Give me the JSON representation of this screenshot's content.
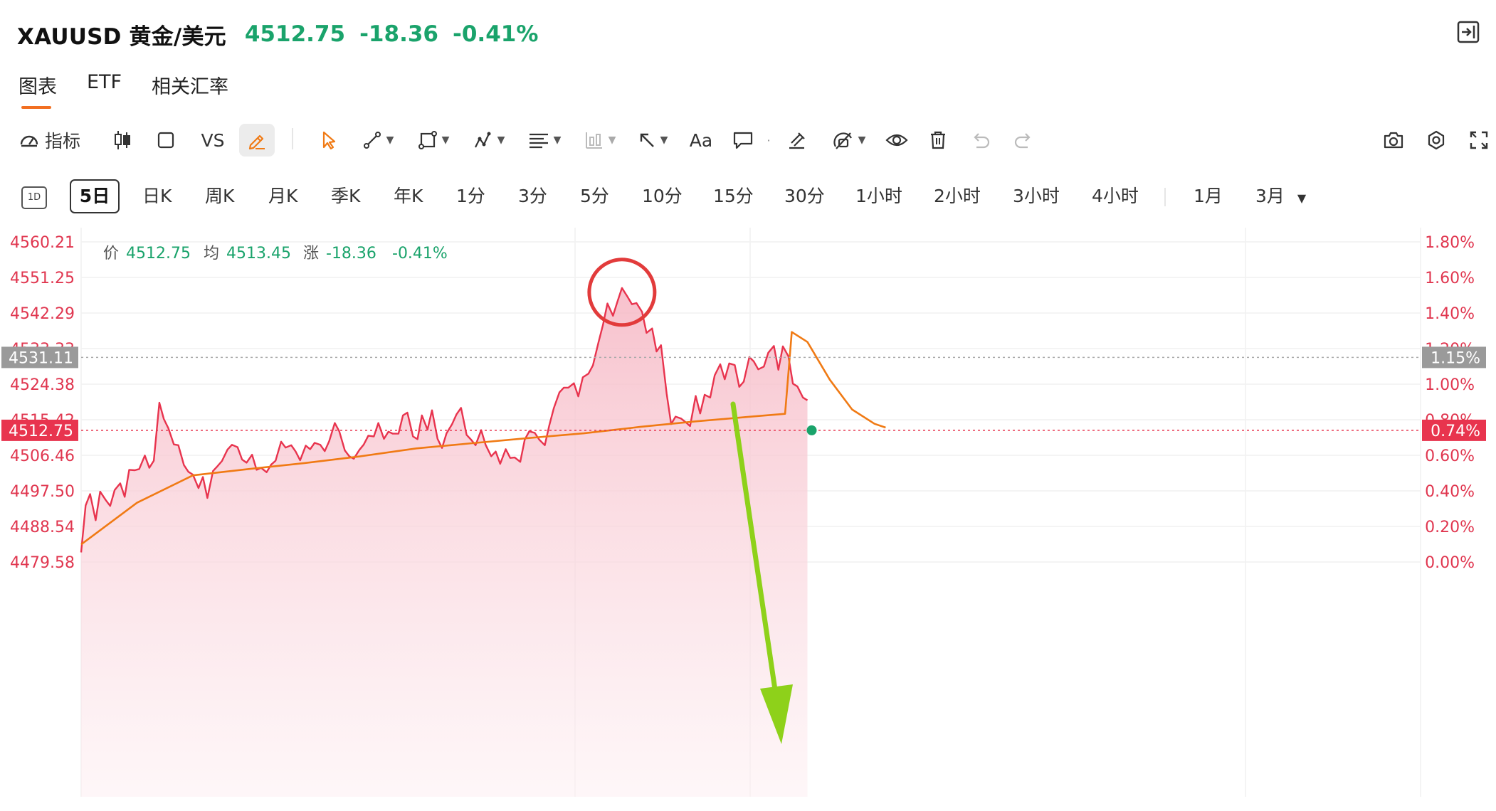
{
  "header": {
    "symbol": "XAUUSD 黄金/美元",
    "price": "4512.75",
    "change": "-18.36",
    "change_pct": "-0.41%",
    "quote_color": "#1aa36b"
  },
  "tabs": [
    {
      "label": "图表",
      "active": true
    },
    {
      "label": "ETF",
      "active": false
    },
    {
      "label": "相关汇率",
      "active": false
    }
  ],
  "toolbar": {
    "indicator_label": "指标",
    "vs_label": "VS",
    "text_label": "Aa",
    "icons": [
      "indicator-icon",
      "candlestick-icon",
      "square-icon",
      "vs",
      "pencil-icon",
      "cursor-icon",
      "line-tool-icon",
      "shape-tool-icon",
      "pattern-tool-icon",
      "fib-tool-icon",
      "position-tool-icon",
      "arrow-tool-icon",
      "text-tool-icon",
      "comment-icon",
      "magnet-icon",
      "lock-icon",
      "eye-icon",
      "trash-icon",
      "undo-icon",
      "redo-icon",
      "camera-icon",
      "settings-icon",
      "fullscreen-icon"
    ]
  },
  "periods": {
    "day_icon": "1D",
    "items": [
      "5日",
      "日K",
      "周K",
      "月K",
      "季K",
      "年K",
      "1分",
      "3分",
      "5分",
      "10分",
      "15分",
      "30分",
      "1小时",
      "2小时",
      "3小时",
      "4小时",
      "1月",
      "3月"
    ],
    "selected": "5日"
  },
  "legend": {
    "price_label": "价",
    "price": "4512.75",
    "avg_label": "均",
    "avg": "4513.45",
    "chg_label": "涨",
    "chg": "-18.36",
    "chg_pct": "-0.41%"
  },
  "axis": {
    "left_ticks": [
      "4560.21",
      "4551.25",
      "4542.29",
      "4533.33",
      "4524.38",
      "4515.42",
      "4506.46",
      "4497.50",
      "4488.54",
      "4479.58"
    ],
    "right_ticks": [
      "1.80%",
      "1.60%",
      "1.40%",
      "1.20%",
      "1.00%",
      "0.80%",
      "0.60%",
      "0.40%",
      "0.20%",
      "0.00%"
    ],
    "crosshair_price": "4531.11",
    "crosshair_pct": "1.15%",
    "last_price": "4512.75",
    "last_pct": "0.74%"
  },
  "colors": {
    "price_line": "#e8344e",
    "avg_line": "#f07a14",
    "axis_text": "#e0364f",
    "annotation_circle": "#e23b3b",
    "annotation_arrow": "#8ed11a",
    "last_dot": "#1aa36b",
    "crosshair_tag": "#9a9a9a"
  },
  "chart_data": {
    "type": "area",
    "y_range": [
      4479.58,
      4560.21
    ],
    "series": [
      {
        "name": "价",
        "points": [
          [
            0,
            4482.0
          ],
          [
            0.4,
            4493.8
          ],
          [
            0.8,
            4496.7
          ],
          [
            1.3,
            4490.1
          ],
          [
            1.7,
            4497.3
          ],
          [
            2.2,
            4495.2
          ],
          [
            2.6,
            4493.7
          ],
          [
            3.0,
            4497.7
          ],
          [
            3.5,
            4499.4
          ],
          [
            3.9,
            4496.0
          ],
          [
            4.3,
            4502.8
          ],
          [
            4.8,
            4502.7
          ],
          [
            5.2,
            4503.0
          ],
          [
            5.7,
            4506.4
          ],
          [
            6.1,
            4503.3
          ],
          [
            6.5,
            4505.1
          ],
          [
            7.0,
            4519.7
          ],
          [
            7.4,
            4515.6
          ],
          [
            7.8,
            4513.3
          ],
          [
            8.3,
            4509.2
          ],
          [
            8.7,
            4509.0
          ],
          [
            9.2,
            4504.0
          ],
          [
            9.6,
            4502.3
          ],
          [
            10.0,
            4501.6
          ],
          [
            10.5,
            4498.2
          ],
          [
            10.9,
            4501.0
          ],
          [
            11.3,
            4495.7
          ],
          [
            11.8,
            4502.5
          ],
          [
            12.2,
            4503.7
          ],
          [
            12.6,
            4505.0
          ],
          [
            13.1,
            4507.9
          ],
          [
            13.5,
            4509.1
          ],
          [
            14.0,
            4508.5
          ],
          [
            14.4,
            4505.4
          ],
          [
            14.8,
            4504.6
          ],
          [
            15.3,
            4506.6
          ],
          [
            15.7,
            4502.8
          ],
          [
            16.1,
            4503.3
          ],
          [
            16.6,
            4502.2
          ],
          [
            17.0,
            4504.1
          ],
          [
            17.4,
            4505.1
          ],
          [
            17.9,
            4509.9
          ],
          [
            18.3,
            4508.4
          ],
          [
            18.8,
            4509.0
          ],
          [
            19.2,
            4507.4
          ],
          [
            19.6,
            4505.2
          ],
          [
            20.1,
            4508.9
          ],
          [
            20.5,
            4508.0
          ],
          [
            20.9,
            4509.6
          ],
          [
            21.4,
            4509.1
          ],
          [
            21.8,
            4507.5
          ],
          [
            22.2,
            4510.0
          ],
          [
            22.7,
            4514.6
          ],
          [
            23.1,
            4512.5
          ],
          [
            23.6,
            4507.7
          ],
          [
            24.0,
            4506.2
          ],
          [
            24.4,
            4505.6
          ],
          [
            24.9,
            4507.8
          ],
          [
            25.3,
            4509.2
          ],
          [
            25.7,
            4511.4
          ],
          [
            26.2,
            4511.2
          ],
          [
            26.6,
            4514.6
          ],
          [
            27.1,
            4510.6
          ],
          [
            27.5,
            4512.4
          ],
          [
            27.9,
            4511.9
          ],
          [
            28.4,
            4511.9
          ],
          [
            28.8,
            4516.5
          ],
          [
            29.2,
            4517.2
          ],
          [
            29.7,
            4511.2
          ],
          [
            30.1,
            4510.5
          ],
          [
            30.5,
            4516.5
          ],
          [
            31.0,
            4512.9
          ],
          [
            31.4,
            4517.8
          ],
          [
            31.9,
            4510.6
          ],
          [
            32.3,
            4508.3
          ],
          [
            32.7,
            4512.0
          ],
          [
            33.2,
            4514.3
          ],
          [
            33.6,
            4516.8
          ],
          [
            34.0,
            4518.4
          ],
          [
            34.5,
            4511.6
          ],
          [
            34.9,
            4510.4
          ],
          [
            35.3,
            4509.0
          ],
          [
            35.8,
            4512.8
          ],
          [
            36.2,
            4509.1
          ],
          [
            36.7,
            4506.2
          ],
          [
            37.1,
            4507.4
          ],
          [
            37.5,
            4504.3
          ],
          [
            38.0,
            4508.0
          ],
          [
            38.4,
            4505.8
          ],
          [
            38.8,
            4505.9
          ],
          [
            39.3,
            4504.8
          ],
          [
            39.7,
            4510.4
          ],
          [
            40.1,
            4512.5
          ],
          [
            40.6,
            4512.1
          ],
          [
            41.0,
            4510.4
          ],
          [
            41.5,
            4509.0
          ],
          [
            41.9,
            4514.0
          ],
          [
            42.3,
            4518.3
          ],
          [
            42.8,
            4522.3
          ],
          [
            43.2,
            4523.5
          ],
          [
            43.6,
            4523.5
          ],
          [
            44.1,
            4524.6
          ],
          [
            44.5,
            4521.3
          ],
          [
            44.9,
            4526.1
          ],
          [
            45.4,
            4527.0
          ],
          [
            45.8,
            4529.1
          ],
          [
            46.3,
            4534.9
          ],
          [
            46.7,
            4539.3
          ],
          [
            47.1,
            4544.7
          ],
          [
            47.6,
            4541.6
          ],
          [
            48.0,
            4545.2
          ],
          [
            48.4,
            4548.6
          ],
          [
            48.9,
            4546.4
          ],
          [
            49.3,
            4544.5
          ],
          [
            49.7,
            4544.8
          ],
          [
            50.2,
            4542.6
          ],
          [
            50.6,
            4537.3
          ],
          [
            51.1,
            4538.4
          ],
          [
            51.5,
            4532.6
          ],
          [
            51.9,
            4534.2
          ],
          [
            52.4,
            4522.0
          ],
          [
            52.8,
            4514.3
          ],
          [
            53.2,
            4516.2
          ],
          [
            53.7,
            4515.7
          ],
          [
            54.1,
            4514.8
          ],
          [
            54.5,
            4513.8
          ],
          [
            55.0,
            4521.4
          ],
          [
            55.4,
            4517.0
          ],
          [
            55.8,
            4521.7
          ],
          [
            56.3,
            4521.0
          ],
          [
            56.7,
            4526.6
          ],
          [
            57.2,
            4529.4
          ],
          [
            57.6,
            4525.6
          ],
          [
            58.0,
            4529.6
          ],
          [
            58.5,
            4529.2
          ],
          [
            58.9,
            4523.7
          ],
          [
            59.3,
            4525.0
          ],
          [
            59.8,
            4531.2
          ],
          [
            60.2,
            4530.1
          ],
          [
            60.6,
            4528.1
          ],
          [
            61.1,
            4528.8
          ],
          [
            61.5,
            4532.3
          ],
          [
            62.0,
            4534.0
          ],
          [
            62.4,
            4528.0
          ],
          [
            62.8,
            4533.9
          ],
          [
            63.3,
            4531.4
          ],
          [
            63.7,
            4524.5
          ],
          [
            64.1,
            4523.8
          ],
          [
            64.6,
            4521.0
          ],
          [
            65.0,
            4520.3
          ]
        ]
      },
      {
        "name": "均",
        "points": [
          [
            0,
            4484.0
          ],
          [
            5,
            4494.5
          ],
          [
            10,
            4501.4
          ],
          [
            15,
            4503.0
          ],
          [
            20,
            4504.5
          ],
          [
            25,
            4506.2
          ],
          [
            30,
            4508.2
          ],
          [
            35,
            4509.5
          ],
          [
            40,
            4510.8
          ],
          [
            45,
            4512.0
          ],
          [
            50,
            4513.6
          ],
          [
            55,
            4515.0
          ],
          [
            60,
            4516.2
          ],
          [
            63,
            4516.9
          ],
          [
            63.6,
            4537.5
          ],
          [
            65,
            4535.0
          ],
          [
            67,
            4525.5
          ],
          [
            69,
            4518.0
          ],
          [
            71,
            4514.4
          ],
          [
            72,
            4513.45
          ]
        ]
      }
    ],
    "annotations": [
      {
        "type": "circle",
        "around": "peak",
        "color": "#e23b3b"
      },
      {
        "type": "arrow",
        "direction": "down",
        "color": "#8ed11a"
      }
    ]
  }
}
